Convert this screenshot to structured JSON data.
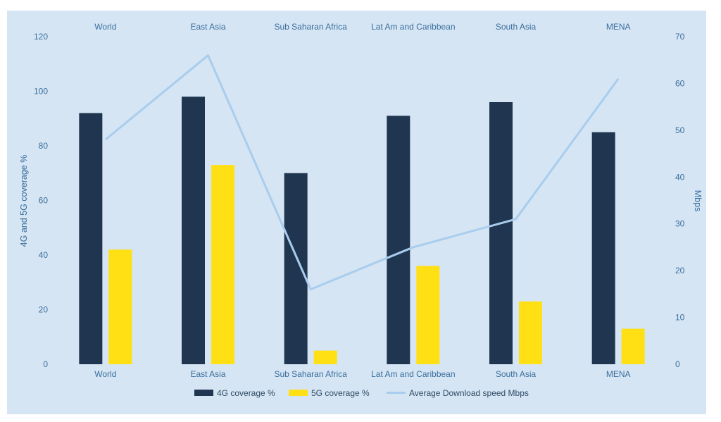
{
  "chart_data": {
    "type": "bar",
    "categories": [
      "World",
      "East Asia",
      "Sub Saharan Africa",
      "Lat Am and Caribbean",
      "South Asia",
      "MENA"
    ],
    "series": [
      {
        "name": "4G coverage %",
        "type": "bar",
        "axis": "left",
        "color": "#1f3550",
        "values": [
          92,
          98,
          70,
          91,
          96,
          85
        ]
      },
      {
        "name": "5G coverage %",
        "type": "bar",
        "axis": "left",
        "color": "#ffe014",
        "values": [
          42,
          73,
          5,
          36,
          23,
          13
        ]
      },
      {
        "name": "Average Download speed Mbps",
        "type": "line",
        "axis": "right",
        "color": "#a9cdee",
        "values": [
          48,
          66,
          16,
          25,
          31,
          61
        ]
      }
    ],
    "ylabel": "4G and 5G coverage %",
    "y2label": "Mbps",
    "ylim": [
      0,
      120
    ],
    "y2lim": [
      0,
      70
    ],
    "yticks": [
      "0",
      "20",
      "40",
      "60",
      "80",
      "100",
      "120"
    ],
    "y2ticks": [
      "0",
      "10",
      "20",
      "30",
      "40",
      "50",
      "60",
      "70"
    ],
    "grid": false,
    "legend_position": "bottom",
    "category_labels_top": true
  }
}
